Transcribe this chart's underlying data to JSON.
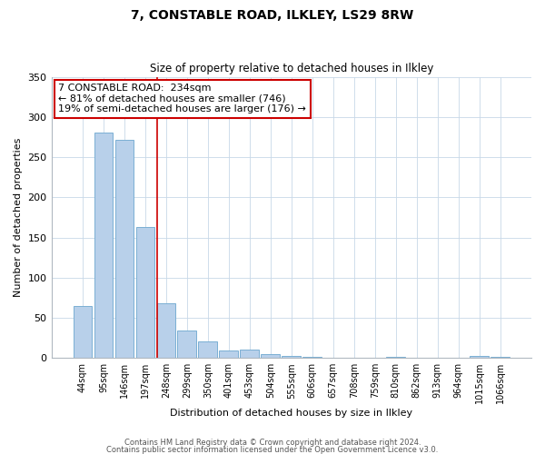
{
  "title": "7, CONSTABLE ROAD, ILKLEY, LS29 8RW",
  "subtitle": "Size of property relative to detached houses in Ilkley",
  "xlabel": "Distribution of detached houses by size in Ilkley",
  "ylabel": "Number of detached properties",
  "bar_labels": [
    "44sqm",
    "95sqm",
    "146sqm",
    "197sqm",
    "248sqm",
    "299sqm",
    "350sqm",
    "401sqm",
    "453sqm",
    "504sqm",
    "555sqm",
    "606sqm",
    "657sqm",
    "708sqm",
    "759sqm",
    "810sqm",
    "862sqm",
    "913sqm",
    "964sqm",
    "1015sqm",
    "1066sqm"
  ],
  "bar_values": [
    65,
    281,
    272,
    163,
    68,
    34,
    21,
    9,
    10,
    5,
    3,
    1,
    0,
    0,
    0,
    1,
    0,
    0,
    0,
    2,
    1
  ],
  "bar_color": "#b8d0ea",
  "bar_edge_color": "#7aafd4",
  "vline_index": 4,
  "vline_color": "#cc0000",
  "annotation_box_text": "7 CONSTABLE ROAD:  234sqm\n← 81% of detached houses are smaller (746)\n19% of semi-detached houses are larger (176) →",
  "annotation_box_color": "#cc0000",
  "ylim": [
    0,
    350
  ],
  "yticks": [
    0,
    50,
    100,
    150,
    200,
    250,
    300,
    350
  ],
  "footer_line1": "Contains HM Land Registry data © Crown copyright and database right 2024.",
  "footer_line2": "Contains public sector information licensed under the Open Government Licence v3.0.",
  "background_color": "#ffffff",
  "grid_color": "#c8d8e8",
  "title_fontsize": 10,
  "subtitle_fontsize": 8.5,
  "annotation_fontsize": 8,
  "axis_label_fontsize": 8,
  "tick_fontsize": 7,
  "footer_fontsize": 6
}
